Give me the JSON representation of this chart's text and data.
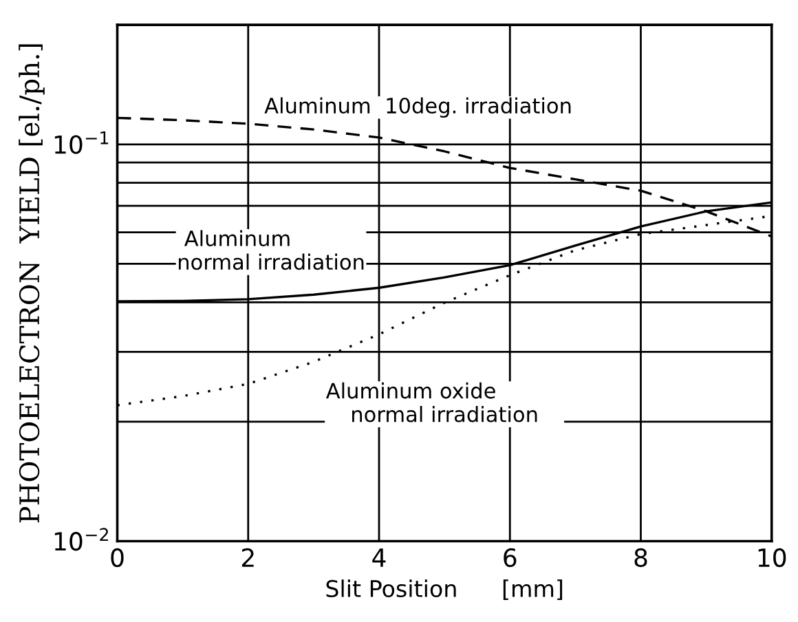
{
  "chart_data": {
    "type": "line",
    "xlabel": "Slit Position      [mm]",
    "ylabel": "PHOTOELECTRON  YIELD [el./ph.]",
    "x": [
      0,
      1,
      2,
      3,
      4,
      5,
      6,
      7,
      8,
      9,
      10
    ],
    "series": [
      {
        "name": "Aluminum  10deg. irradiation",
        "color": "#000000",
        "line_style": "dashed",
        "values": [
          0.1166,
          0.115,
          0.1127,
          0.109,
          0.104,
          0.096,
          0.0872,
          0.0816,
          0.0764,
          0.0678,
          0.0586
        ]
      },
      {
        "name": "Aluminum          \nnormal irradiation",
        "color": "#000000",
        "line_style": "solid",
        "values": [
          0.0402,
          0.0403,
          0.0407,
          0.0418,
          0.0435,
          0.0462,
          0.0496,
          0.0556,
          0.0621,
          0.0678,
          0.0714
        ]
      },
      {
        "name": "Aluminum oxide          \nnormal irradiation",
        "color": "#000000",
        "line_style": "dotted",
        "values": [
          0.022,
          0.0232,
          0.0249,
          0.0283,
          0.0332,
          0.0399,
          0.0468,
          0.0541,
          0.0594,
          0.0626,
          0.066
        ]
      }
    ],
    "log": "y",
    "xlim": [
      0,
      10
    ],
    "ylim": [
      0.01,
      0.2
    ],
    "xticks": [
      0,
      2,
      4,
      6,
      8,
      10
    ],
    "yticks": [
      {
        "value": 0.01,
        "label": "10$^{−2}$"
      },
      {
        "value": 0.02,
        "label": null
      },
      {
        "value": 0.03,
        "label": null
      },
      {
        "value": 0.04,
        "label": null
      },
      {
        "value": 0.05,
        "label": null
      },
      {
        "value": 0.06,
        "label": null
      },
      {
        "value": 0.07,
        "label": null
      },
      {
        "value": 0.08,
        "label": null
      },
      {
        "value": 0.09,
        "label": null
      },
      {
        "value": 0.1,
        "label": "10$^{−1}$"
      }
    ],
    "grid": true,
    "marker": "none"
  }
}
